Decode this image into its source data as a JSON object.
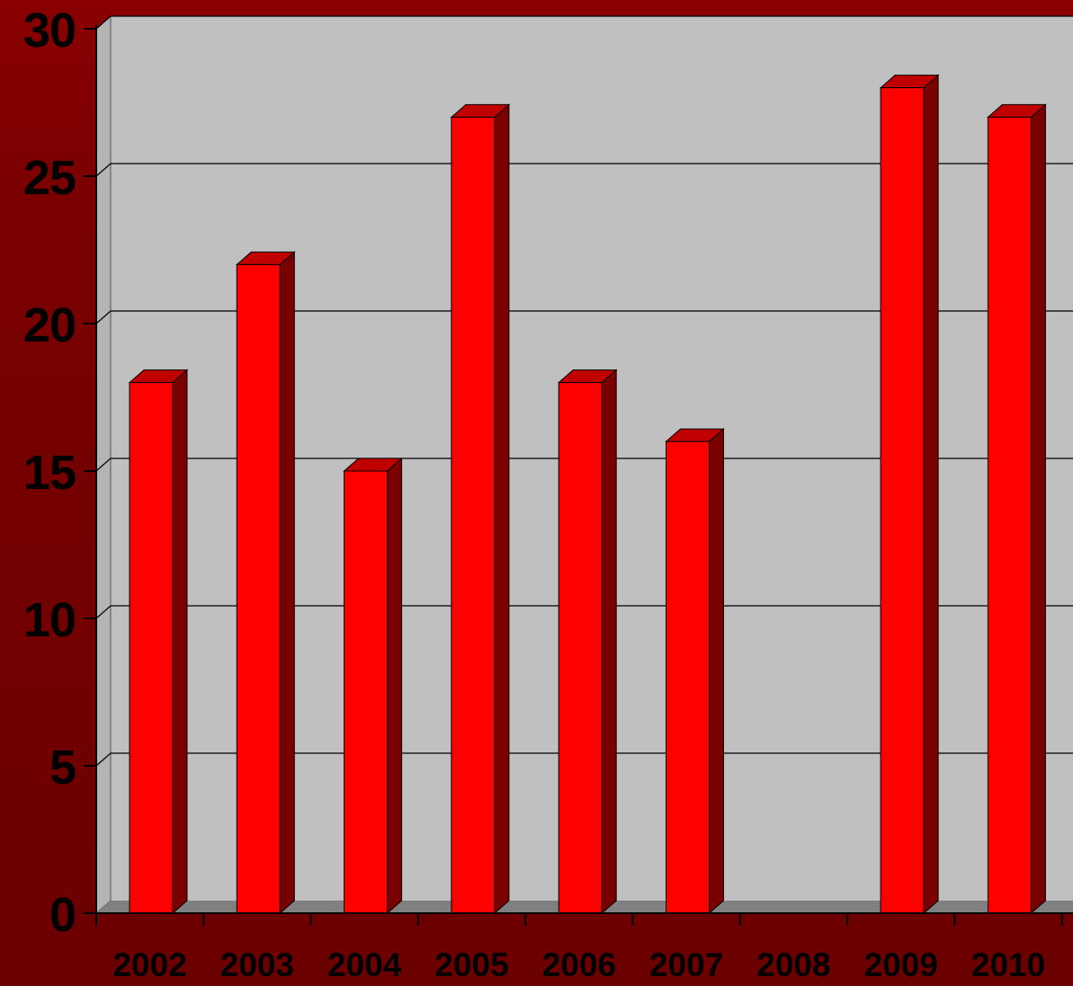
{
  "chart_data": {
    "type": "bar",
    "title": "",
    "xlabel": "",
    "ylabel": "",
    "categories": [
      "2002",
      "2003",
      "2004",
      "2005",
      "2006",
      "2007",
      "2008",
      "2009",
      "2010"
    ],
    "series": [
      {
        "values": [
          18,
          22,
          15,
          27,
          18,
          16,
          0,
          28,
          27
        ],
        "color": "#ff0000"
      }
    ],
    "ylim": [
      0,
      30
    ],
    "yticks": [
      "0",
      "5",
      "10",
      "15",
      "20",
      "25",
      "30"
    ],
    "grid": true,
    "style": "3d",
    "colors": {
      "background": "#6b0000",
      "plot_area": "#c0c0c0",
      "floor": "#808080",
      "bar_front": "#ff0000",
      "bar_side": "#7a0000",
      "bar_top": "#c00000",
      "text": "#000000"
    }
  }
}
